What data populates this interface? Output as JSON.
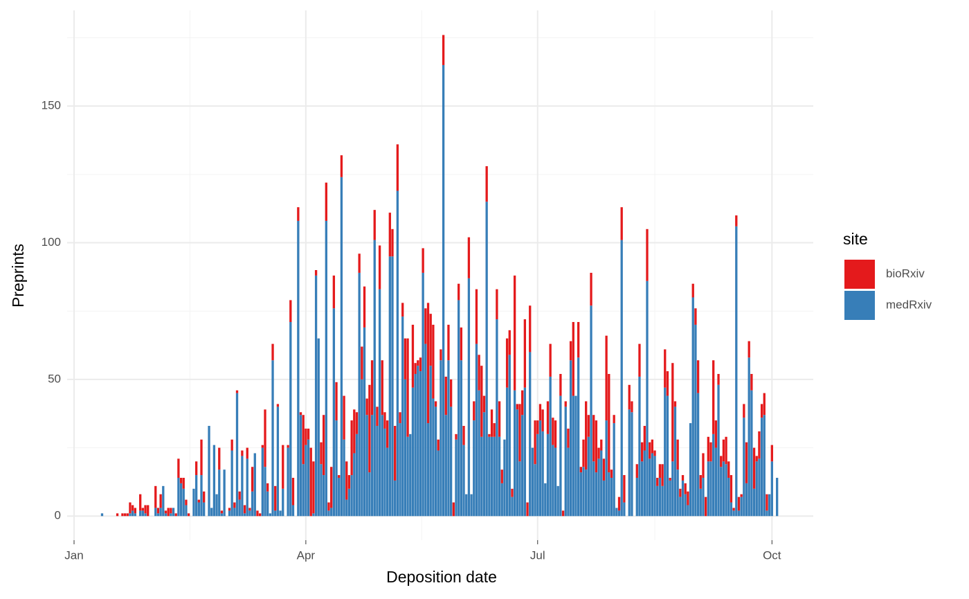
{
  "chart_data": {
    "type": "stacked_bar",
    "x_label": "Deposition date",
    "y_label": "Preprints",
    "legend_title": "site",
    "legend_position": "right",
    "grid": true,
    "ylim": [
      -8.8,
      185
    ],
    "yticks": [
      0,
      50,
      100,
      150
    ],
    "y_minor_ticks": [
      25,
      75,
      125,
      175
    ],
    "categories": [
      "Jan",
      null,
      null,
      null,
      null,
      null,
      null,
      null,
      null,
      null,
      null,
      null,
      null,
      null,
      null,
      null,
      null,
      null,
      null,
      null,
      null,
      null,
      null,
      null,
      null,
      null,
      null,
      null,
      null,
      null,
      null,
      null,
      null,
      null,
      null,
      null,
      null,
      null,
      null,
      null,
      null,
      null,
      null,
      null,
      null,
      null,
      null,
      null,
      null,
      null,
      null,
      null,
      null,
      null,
      null,
      null,
      null,
      null,
      null,
      null,
      null,
      null,
      null,
      null,
      null,
      null,
      null,
      null,
      null,
      null,
      null,
      null,
      null,
      null,
      null,
      null,
      null,
      null,
      null,
      null,
      null,
      null,
      null,
      null,
      null,
      null,
      null,
      null,
      null,
      null,
      null,
      "Apr",
      null,
      null,
      null,
      null,
      null,
      null,
      null,
      null,
      null,
      null,
      null,
      null,
      null,
      null,
      null,
      null,
      null,
      null,
      null,
      null,
      null,
      null,
      null,
      null,
      null,
      null,
      null,
      null,
      null,
      null,
      null,
      null,
      null,
      null,
      null,
      null,
      null,
      null,
      null,
      null,
      null,
      null,
      null,
      null,
      null,
      null,
      null,
      null,
      null,
      null,
      null,
      null,
      null,
      null,
      null,
      null,
      null,
      null,
      null,
      null,
      null,
      null,
      null,
      null,
      null,
      null,
      null,
      null,
      null,
      null,
      null,
      null,
      null,
      null,
      null,
      null,
      null,
      null,
      null,
      null,
      null,
      null,
      null,
      null,
      null,
      null,
      null,
      null,
      null,
      null,
      "Jul",
      null,
      null,
      null,
      null,
      null,
      null,
      null,
      null,
      null,
      null,
      null,
      null,
      null,
      null,
      null,
      null,
      null,
      null,
      null,
      null,
      null,
      null,
      null,
      null,
      null,
      null,
      null,
      null,
      null,
      null,
      null,
      null,
      null,
      null,
      null,
      null,
      null,
      null,
      null,
      null,
      null,
      null,
      null,
      null,
      null,
      null,
      null,
      null,
      null,
      null,
      null,
      null,
      null,
      null,
      null,
      null,
      null,
      null,
      null,
      null,
      null,
      null,
      null,
      null,
      null,
      null,
      null,
      null,
      null,
      null,
      null,
      null,
      null,
      null,
      null,
      null,
      null,
      null,
      null,
      null,
      null,
      null,
      null,
      null,
      null,
      null,
      null,
      null,
      null,
      null,
      null,
      "Oct",
      null,
      null,
      null,
      null,
      null,
      null,
      null,
      null,
      null,
      null,
      null,
      null,
      null,
      null,
      null
    ],
    "series": [
      {
        "name": "bioRxiv",
        "color": "#e41a1c",
        "values": [
          0,
          0,
          0,
          0,
          0,
          0,
          0,
          0,
          0,
          0,
          0,
          0,
          0,
          0,
          0,
          0,
          0,
          1,
          0,
          1,
          1,
          1,
          4,
          2,
          2,
          0,
          6,
          1,
          3,
          4,
          0,
          0,
          8,
          2,
          5,
          0,
          1,
          3,
          2,
          0,
          1,
          7,
          2,
          4,
          2,
          1,
          0,
          0,
          5,
          1,
          13,
          4,
          0,
          0,
          0,
          0,
          0,
          8,
          1,
          0,
          0,
          1,
          4,
          2,
          1,
          3,
          2,
          3,
          4,
          1,
          9,
          0,
          2,
          1,
          1,
          21,
          3,
          0,
          6,
          9,
          1,
          0,
          16,
          0,
          1,
          8,
          10,
          0,
          5,
          1,
          18,
          6,
          4,
          25,
          19,
          2,
          0,
          8,
          22,
          14,
          3,
          15,
          12,
          14,
          1,
          8,
          16,
          14,
          5,
          20,
          16,
          8,
          7,
          12,
          15,
          6,
          32,
          20,
          11,
          7,
          16,
          20,
          6,
          10,
          16,
          10,
          20,
          17,
          4,
          5,
          15,
          36,
          0,
          23,
          4,
          2,
          5,
          9,
          13,
          44,
          19,
          27,
          2,
          4,
          4,
          11,
          14,
          13,
          10,
          5,
          2,
          6,
          12,
          7,
          0,
          15,
          0,
          7,
          20,
          13,
          26,
          6,
          13,
          1,
          10,
          5,
          11,
          13,
          5,
          0,
          18,
          9,
          3,
          42,
          2,
          21,
          9,
          25,
          5,
          17,
          0,
          16,
          5,
          6,
          8,
          0,
          12,
          12,
          10,
          10,
          0,
          8,
          2,
          2,
          7,
          7,
          27,
          0,
          13,
          2,
          10,
          25,
          8,
          12,
          17,
          19,
          4,
          4,
          8,
          31,
          36,
          3,
          3,
          0,
          5,
          12,
          10,
          0,
          9,
          4,
          0,
          5,
          12,
          7,
          9,
          19,
          6,
          5,
          2,
          3,
          5,
          8,
          14,
          9,
          1,
          36,
          2,
          11,
          3,
          2,
          4,
          5,
          0,
          5,
          6,
          12,
          5,
          9,
          7,
          9,
          7,
          27,
          10,
          4,
          4,
          8,
          10,
          6,
          10,
          1,
          4,
          5,
          1,
          5,
          15,
          6,
          6,
          15,
          2,
          10,
          5,
          8,
          6,
          0,
          6,
          0,
          0,
          0,
          0,
          0,
          0,
          0,
          0,
          0,
          0,
          0,
          0,
          0,
          0,
          0
        ]
      },
      {
        "name": "medRxiv",
        "color": "#377eb8",
        "values": [
          0,
          0,
          0,
          0,
          0,
          0,
          0,
          0,
          0,
          0,
          0,
          1,
          0,
          0,
          0,
          0,
          0,
          0,
          0,
          0,
          0,
          0,
          1,
          2,
          1,
          0,
          2,
          2,
          1,
          0,
          0,
          0,
          3,
          1,
          3,
          11,
          1,
          0,
          1,
          3,
          0,
          14,
          12,
          10,
          4,
          0,
          0,
          10,
          15,
          5,
          15,
          5,
          0,
          33,
          3,
          26,
          8,
          17,
          1,
          17,
          0,
          2,
          24,
          3,
          45,
          6,
          22,
          1,
          21,
          2,
          9,
          23,
          0,
          0,
          25,
          18,
          9,
          1,
          57,
          2,
          40,
          2,
          10,
          0,
          25,
          71,
          4,
          0,
          108,
          37,
          19,
          26,
          28,
          0,
          1,
          88,
          65,
          19,
          15,
          108,
          2,
          3,
          76,
          35,
          14,
          124,
          28,
          6,
          10,
          15,
          23,
          30,
          89,
          50,
          69,
          37,
          16,
          37,
          101,
          33,
          83,
          37,
          32,
          25,
          95,
          95,
          13,
          119,
          34,
          73,
          50,
          29,
          30,
          47,
          52,
          55,
          53,
          89,
          63,
          34,
          55,
          43,
          40,
          24,
          57,
          165,
          37,
          57,
          40,
          0,
          28,
          79,
          57,
          26,
          8,
          87,
          8,
          35,
          63,
          46,
          29,
          38,
          115,
          29,
          29,
          29,
          72,
          29,
          12,
          28,
          47,
          59,
          7,
          46,
          39,
          20,
          37,
          47,
          0,
          60,
          25,
          19,
          30,
          35,
          31,
          12,
          30,
          51,
          26,
          25,
          11,
          44,
          0,
          40,
          25,
          57,
          44,
          44,
          58,
          16,
          18,
          17,
          29,
          77,
          20,
          16,
          21,
          24,
          13,
          35,
          16,
          14,
          34,
          3,
          2,
          101,
          5,
          0,
          39,
          38,
          0,
          14,
          51,
          20,
          24,
          86,
          21,
          23,
          22,
          11,
          14,
          11,
          47,
          44,
          13,
          20,
          40,
          17,
          7,
          13,
          8,
          4,
          34,
          80,
          70,
          45,
          10,
          14,
          0,
          20,
          20,
          30,
          25,
          48,
          18,
          20,
          19,
          14,
          5,
          2,
          106,
          2,
          7,
          36,
          12,
          58,
          46,
          10,
          20,
          21,
          36,
          37,
          2,
          8,
          20,
          0,
          14,
          0,
          0,
          0,
          0,
          0,
          0,
          0,
          0,
          0,
          0,
          0,
          0,
          0
        ]
      }
    ]
  }
}
